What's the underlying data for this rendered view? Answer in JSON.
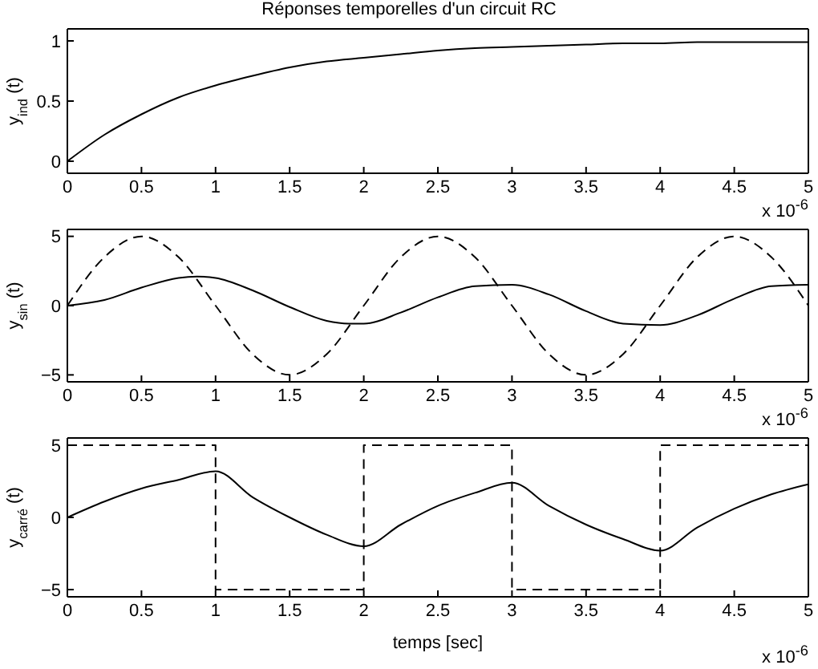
{
  "chart_data": [
    {
      "type": "line",
      "title": "Réponses temporelles d'un circuit RC",
      "ylabel": "y$_{ind}$ (t)",
      "annotations": [
        "x 10$^{-6}$"
      ],
      "xlim": [
        0,
        5
      ],
      "xticks": [
        0,
        0.5,
        1,
        1.5,
        2,
        2.5,
        3,
        3.5,
        4,
        4.5,
        5
      ],
      "ylim": [
        -0.1,
        1.1
      ],
      "yticks": [
        0,
        0.5,
        1
      ],
      "marker": "none",
      "series": [
        {
          "color": "#000000",
          "line_style": "solid",
          "x": [
            0,
            0.25,
            0.5,
            0.75,
            1,
            1.25,
            1.5,
            1.75,
            2,
            2.25,
            2.5,
            2.75,
            3,
            3.25,
            3.5,
            3.75,
            4,
            4.25,
            4.5,
            4.75,
            5
          ],
          "values": [
            0,
            0.22,
            0.39,
            0.53,
            0.63,
            0.71,
            0.78,
            0.83,
            0.86,
            0.89,
            0.92,
            0.94,
            0.95,
            0.96,
            0.97,
            0.98,
            0.98,
            0.99,
            0.99,
            0.99,
            0.99
          ]
        }
      ]
    },
    {
      "type": "line",
      "ylabel": "y$_{sin}$ (t)",
      "annotations": [
        "x 10$^{-6}$"
      ],
      "xlim": [
        0,
        5
      ],
      "xticks": [
        0,
        0.5,
        1,
        1.5,
        2,
        2.5,
        3,
        3.5,
        4,
        4.5,
        5
      ],
      "ylim": [
        -5.5,
        5.5
      ],
      "yticks": [
        -5,
        0,
        5
      ],
      "marker": "none",
      "series": [
        {
          "color": "#000000",
          "line_style": "solid",
          "x": [
            0,
            0.25,
            0.5,
            0.75,
            0.875,
            1,
            1.25,
            1.5,
            1.75,
            1.9,
            2,
            2.25,
            2.5,
            2.75,
            3,
            3.25,
            3.5,
            3.75,
            4,
            4.25,
            4.5,
            4.75,
            5
          ],
          "values": [
            0,
            0.4,
            1.3,
            2.0,
            2.1,
            2.0,
            1.1,
            -0.1,
            -1.1,
            -1.3,
            -1.3,
            -0.5,
            0.6,
            1.4,
            1.5,
            0.8,
            -0.4,
            -1.3,
            -1.4,
            -0.7,
            0.5,
            1.4,
            1.5
          ]
        },
        {
          "color": "#000000",
          "line_style": "dashed",
          "x": [
            0,
            0.25,
            0.5,
            0.75,
            1,
            1.25,
            1.5,
            1.75,
            2,
            2.25,
            2.5,
            2.75,
            3,
            3.25,
            3.5,
            3.75,
            4,
            4.25,
            4.5,
            4.75,
            5
          ],
          "values": [
            0,
            3.5,
            5,
            3.5,
            0,
            -3.5,
            -5,
            -3.5,
            0,
            3.5,
            5,
            3.5,
            0,
            -3.5,
            -5,
            -3.5,
            0,
            3.5,
            5,
            3.5,
            0
          ]
        }
      ]
    },
    {
      "type": "line",
      "ylabel": "y$_{carré}$ (t)",
      "xlabel": "temps [sec]",
      "annotations": [
        "x 10$^{-6}$"
      ],
      "xlim": [
        0,
        5
      ],
      "xticks": [
        0,
        0.5,
        1,
        1.5,
        2,
        2.5,
        3,
        3.5,
        4,
        4.5,
        5
      ],
      "ylim": [
        -5.5,
        5.5
      ],
      "yticks": [
        -5,
        0,
        5
      ],
      "marker": "none",
      "series": [
        {
          "color": "#000000",
          "line_style": "solid",
          "x": [
            0,
            0.25,
            0.5,
            0.75,
            1,
            1.25,
            1.5,
            1.75,
            2,
            2.25,
            2.5,
            2.75,
            3,
            3.25,
            3.5,
            3.75,
            4,
            4.25,
            4.5,
            4.75,
            5
          ],
          "values": [
            0,
            1.1,
            2.0,
            2.6,
            3.2,
            1.4,
            0,
            -1.2,
            -2.0,
            -0.5,
            0.8,
            1.7,
            2.4,
            0.8,
            -0.5,
            -1.5,
            -2.3,
            -0.7,
            0.6,
            1.6,
            2.3
          ]
        },
        {
          "color": "#000000",
          "line_style": "dashed",
          "x": [
            0,
            1,
            1,
            2,
            2,
            3,
            3,
            4,
            4,
            5
          ],
          "values": [
            5,
            5,
            -5,
            -5,
            5,
            5,
            -5,
            -5,
            5,
            5
          ]
        }
      ]
    }
  ]
}
